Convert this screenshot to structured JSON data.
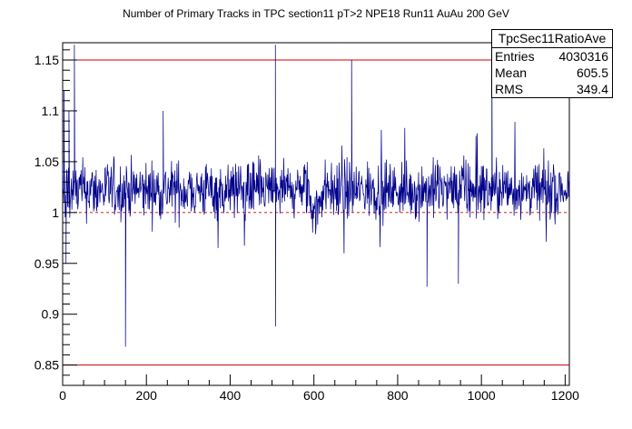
{
  "title": "Number of Primary Tracks in TPC section11 pT>2 NPE18 Run11 AuAu 200 GeV",
  "stats": {
    "name": "TpcSec11RatioAve",
    "rows": [
      {
        "label": "Entries",
        "value": "4030316"
      },
      {
        "label": "Mean",
        "value": "605.5"
      },
      {
        "label": "RMS",
        "value": "349.4"
      }
    ]
  },
  "colors": {
    "series": "#00008b",
    "reference": "#cc0000",
    "axis": "#000000"
  },
  "chart_data": {
    "type": "line",
    "title": "Number of Primary Tracks in TPC section11 pT>2 NPE18 Run11 AuAu 200 GeV",
    "xlabel": "",
    "ylabel": "",
    "xlim": [
      0,
      1210
    ],
    "ylim": [
      0.83,
      1.167
    ],
    "x_ticks": [
      0,
      200,
      400,
      600,
      800,
      1000,
      1200
    ],
    "x_tick_labels": [
      "0",
      "200",
      "400",
      "600",
      "800",
      "1000",
      "1200"
    ],
    "y_ticks": [
      0.85,
      0.9,
      0.95,
      1,
      1.05,
      1.1,
      1.15
    ],
    "y_tick_labels": [
      "0.85",
      "0.9",
      "0.95",
      "1",
      "1.05",
      "1.1",
      "1.15"
    ],
    "grid": false,
    "reference_lines": [
      {
        "y": 1.15,
        "style": "solid"
      },
      {
        "y": 0.85,
        "style": "solid"
      },
      {
        "y": 1.0,
        "style": "dashed"
      }
    ],
    "series": [
      {
        "x_start": 0,
        "x_end": 1210,
        "x_step": 1,
        "gap": [
          585,
          620
        ],
        "baseline": 1.022,
        "noise": 0.028,
        "spikes": [
          {
            "x": 3,
            "y": 1.12
          },
          {
            "x": 8,
            "y": 0.95
          },
          {
            "x": 15,
            "y": 1.1
          },
          {
            "x": 28,
            "y": 1.165
          },
          {
            "x": 150,
            "y": 0.868
          },
          {
            "x": 240,
            "y": 1.1
          },
          {
            "x": 508,
            "y": 1.165
          },
          {
            "x": 508.6,
            "y": 0.888
          },
          {
            "x": 690,
            "y": 1.15
          },
          {
            "x": 690.6,
            "y": 1.075
          },
          {
            "x": 870,
            "y": 0.927
          },
          {
            "x": 945,
            "y": 0.93
          },
          {
            "x": 1025,
            "y": 1.165
          }
        ]
      }
    ]
  }
}
